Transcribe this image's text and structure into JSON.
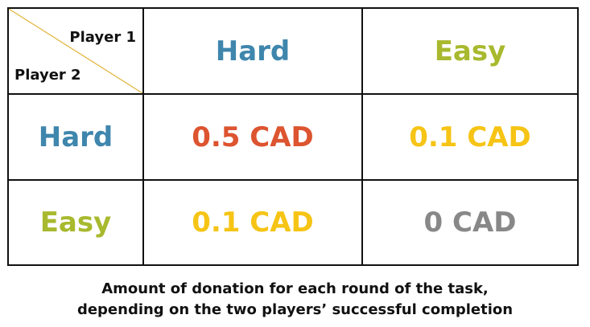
{
  "colors": {
    "hard": "#3f86ad",
    "easy": "#a8b92e",
    "high": "#dd5430",
    "mid": "#f6c415",
    "zero": "#888888",
    "diagonal": "#e2b640"
  },
  "matrix": {
    "corner": {
      "player1": "Player 1",
      "player2": "Player 2"
    },
    "columns": [
      "Hard",
      "Easy"
    ],
    "rows": [
      {
        "label": "Hard",
        "cells": [
          "0.5 CAD",
          "0.1 CAD"
        ]
      },
      {
        "label": "Easy",
        "cells": [
          "0.1 CAD",
          "0 CAD"
        ]
      }
    ]
  },
  "caption": {
    "line1": "Amount of donation for each round of the task,",
    "line2": "depending on the two players’ successful completion"
  }
}
